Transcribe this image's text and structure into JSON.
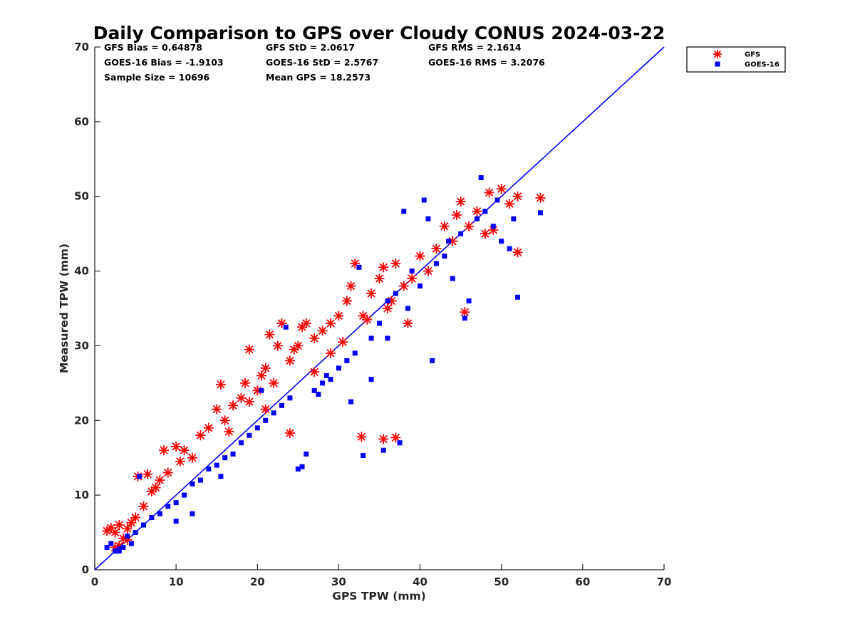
{
  "chart_data": {
    "type": "scatter",
    "title": "Daily Comparison to GPS over Cloudy CONUS 2024-03-22",
    "xlabel": "GPS TPW (mm)",
    "ylabel": "Measured TPW (mm)",
    "xlim": [
      0,
      70
    ],
    "ylim": [
      0,
      70
    ],
    "xticks": [
      0,
      10,
      20,
      30,
      40,
      50,
      60,
      70
    ],
    "yticks": [
      0,
      10,
      20,
      30,
      40,
      50,
      60,
      70
    ],
    "legend_position": "outside-top-right",
    "stats": [
      [
        "GFS Bias = 0.64878",
        "GFS StD = 2.0617",
        "GFS RMS = 2.1614"
      ],
      [
        "GOES-16 Bias = -1.9103",
        "GOES-16 StD = 2.5767",
        "GOES-16 RMS = 3.2076"
      ],
      [
        "Sample Size = 10696",
        "Mean GPS = 18.2573"
      ]
    ],
    "reference_line": {
      "name": "1:1 line",
      "x": [
        0,
        70
      ],
      "y": [
        0,
        70
      ],
      "color": "#0000ff"
    },
    "series": [
      {
        "name": "GFS",
        "marker": "asterisk",
        "color": "#ff0000",
        "points": [
          [
            1.5,
            5.2
          ],
          [
            2.0,
            5.6
          ],
          [
            2.5,
            5.0
          ],
          [
            3.0,
            6.0
          ],
          [
            3.5,
            4.2
          ],
          [
            4.0,
            5.5
          ],
          [
            4.5,
            6.3
          ],
          [
            5.0,
            7.0
          ],
          [
            5.3,
            12.5
          ],
          [
            6.0,
            8.5
          ],
          [
            6.5,
            12.8
          ],
          [
            7.0,
            10.5
          ],
          [
            7.5,
            11.0
          ],
          [
            8.0,
            12.0
          ],
          [
            8.5,
            16.0
          ],
          [
            9.0,
            13.0
          ],
          [
            10.0,
            16.5
          ],
          [
            10.5,
            14.5
          ],
          [
            11.0,
            16.0
          ],
          [
            12.0,
            15.0
          ],
          [
            13.0,
            18.0
          ],
          [
            14.0,
            19.0
          ],
          [
            15.0,
            21.5
          ],
          [
            15.5,
            24.8
          ],
          [
            16.0,
            20.0
          ],
          [
            17.0,
            22.0
          ],
          [
            18.0,
            23.0
          ],
          [
            18.5,
            25.0
          ],
          [
            19.0,
            29.5
          ],
          [
            20.0,
            24.0
          ],
          [
            20.5,
            26.0
          ],
          [
            21.0,
            27.0
          ],
          [
            21.5,
            31.5
          ],
          [
            22.0,
            25.0
          ],
          [
            22.5,
            30.0
          ],
          [
            23.0,
            33.0
          ],
          [
            24.0,
            28.0
          ],
          [
            24.5,
            29.5
          ],
          [
            25.0,
            30.0
          ],
          [
            25.5,
            32.5
          ],
          [
            26.0,
            33.0
          ],
          [
            27.0,
            31.0
          ],
          [
            28.0,
            32.0
          ],
          [
            29.0,
            33.0
          ],
          [
            30.0,
            34.0
          ],
          [
            31.0,
            36.0
          ],
          [
            31.5,
            38.0
          ],
          [
            32.0,
            41.0
          ],
          [
            33.0,
            34.0
          ],
          [
            34.0,
            37.0
          ],
          [
            35.0,
            39.0
          ],
          [
            35.5,
            40.5
          ],
          [
            36.0,
            35.0
          ],
          [
            37.0,
            41.0
          ],
          [
            38.0,
            38.0
          ],
          [
            39.0,
            39.0
          ],
          [
            40.0,
            42.0
          ],
          [
            41.0,
            40.0
          ],
          [
            42.0,
            43.0
          ],
          [
            43.0,
            46.0
          ],
          [
            44.0,
            44.0
          ],
          [
            44.5,
            47.5
          ],
          [
            45.0,
            49.3
          ],
          [
            45.5,
            34.5
          ],
          [
            46.0,
            46.0
          ],
          [
            47.0,
            48.0
          ],
          [
            48.0,
            45.0
          ],
          [
            48.5,
            50.5
          ],
          [
            49.0,
            45.5
          ],
          [
            50.0,
            51.0
          ],
          [
            51.0,
            49.0
          ],
          [
            52.0,
            50.0
          ],
          [
            52.0,
            42.5
          ],
          [
            54.8,
            49.8
          ],
          [
            32.8,
            17.8
          ],
          [
            35.5,
            17.5
          ],
          [
            37.0,
            17.7
          ],
          [
            24.0,
            18.3
          ],
          [
            29.0,
            29.0
          ],
          [
            27.0,
            26.5
          ],
          [
            19.0,
            22.5
          ],
          [
            16.5,
            18.5
          ],
          [
            21.0,
            21.5
          ],
          [
            38.5,
            33.0
          ],
          [
            36.5,
            36.0
          ],
          [
            30.5,
            30.5
          ],
          [
            33.5,
            33.5
          ],
          [
            3.0,
            3.2
          ],
          [
            4.0,
            4.0
          ],
          [
            2.5,
            3.0
          ]
        ]
      },
      {
        "name": "GOES-16",
        "marker": "square",
        "color": "#0000ff",
        "points": [
          [
            1.5,
            3.0
          ],
          [
            2.0,
            3.5
          ],
          [
            3.0,
            2.5
          ],
          [
            3.5,
            3.0
          ],
          [
            4.0,
            4.5
          ],
          [
            5.0,
            5.0
          ],
          [
            5.5,
            12.5
          ],
          [
            6.0,
            6.0
          ],
          [
            7.0,
            7.0
          ],
          [
            8.0,
            7.5
          ],
          [
            9.0,
            8.5
          ],
          [
            10.0,
            9.0
          ],
          [
            11.0,
            10.0
          ],
          [
            12.0,
            11.5
          ],
          [
            13.0,
            12.0
          ],
          [
            14.0,
            13.5
          ],
          [
            15.0,
            14.0
          ],
          [
            16.0,
            15.0
          ],
          [
            17.0,
            15.5
          ],
          [
            18.0,
            17.0
          ],
          [
            19.0,
            18.0
          ],
          [
            20.0,
            19.0
          ],
          [
            21.0,
            20.0
          ],
          [
            22.0,
            21.0
          ],
          [
            23.0,
            22.0
          ],
          [
            23.5,
            32.5
          ],
          [
            24.0,
            23.0
          ],
          [
            25.0,
            13.5
          ],
          [
            25.5,
            13.8
          ],
          [
            26.0,
            15.5
          ],
          [
            27.0,
            24.0
          ],
          [
            28.0,
            25.0
          ],
          [
            29.0,
            25.5
          ],
          [
            30.0,
            27.0
          ],
          [
            31.0,
            28.0
          ],
          [
            32.0,
            29.0
          ],
          [
            32.5,
            40.5
          ],
          [
            33.0,
            15.3
          ],
          [
            34.0,
            31.0
          ],
          [
            35.0,
            33.0
          ],
          [
            35.5,
            16.0
          ],
          [
            36.0,
            36.0
          ],
          [
            37.0,
            37.0
          ],
          [
            37.5,
            17.0
          ],
          [
            38.0,
            48.0
          ],
          [
            38.5,
            35.0
          ],
          [
            39.0,
            40.0
          ],
          [
            40.0,
            38.0
          ],
          [
            40.5,
            49.5
          ],
          [
            41.0,
            47.0
          ],
          [
            41.5,
            28.0
          ],
          [
            42.0,
            41.0
          ],
          [
            43.0,
            42.0
          ],
          [
            43.5,
            44.0
          ],
          [
            44.0,
            39.0
          ],
          [
            45.0,
            45.0
          ],
          [
            45.5,
            33.7
          ],
          [
            46.0,
            36.0
          ],
          [
            47.0,
            47.0
          ],
          [
            47.5,
            52.5
          ],
          [
            48.0,
            48.0
          ],
          [
            49.0,
            46.0
          ],
          [
            49.5,
            49.5
          ],
          [
            50.0,
            44.0
          ],
          [
            51.0,
            43.0
          ],
          [
            51.5,
            47.0
          ],
          [
            52.0,
            36.5
          ],
          [
            54.8,
            47.8
          ],
          [
            36.0,
            31.0
          ],
          [
            34.0,
            25.5
          ],
          [
            31.5,
            22.5
          ],
          [
            28.5,
            26.0
          ],
          [
            20.5,
            24.0
          ],
          [
            15.5,
            12.5
          ],
          [
            12.0,
            7.5
          ],
          [
            10.0,
            6.5
          ],
          [
            3.0,
            2.8
          ],
          [
            4.5,
            3.5
          ],
          [
            2.5,
            2.5
          ],
          [
            27.5,
            23.5
          ]
        ]
      }
    ]
  }
}
